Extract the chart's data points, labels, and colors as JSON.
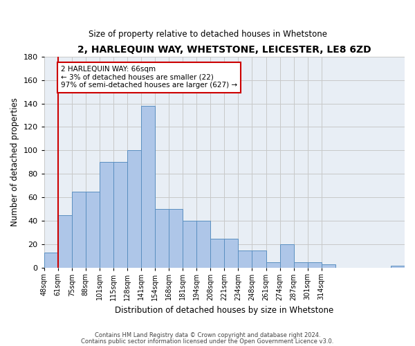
{
  "title": "2, HARLEQUIN WAY, WHETSTONE, LEICESTER, LE8 6ZD",
  "subtitle": "Size of property relative to detached houses in Whetstone",
  "xlabel": "Distribution of detached houses by size in Whetstone",
  "ylabel": "Number of detached properties",
  "bar_heights": [
    13,
    45,
    65,
    65,
    90,
    90,
    100,
    138,
    50,
    50,
    40,
    40,
    25,
    25,
    15,
    15,
    5,
    20,
    5,
    5,
    3,
    0,
    0,
    0,
    0,
    2
  ],
  "xtick_labels": [
    "48sqm",
    "61sqm",
    "75sqm",
    "88sqm",
    "101sqm",
    "115sqm",
    "128sqm",
    "141sqm",
    "154sqm",
    "168sqm",
    "181sqm",
    "194sqm",
    "208sqm",
    "221sqm",
    "234sqm",
    "248sqm",
    "261sqm",
    "274sqm",
    "287sqm",
    "301sqm",
    "314sqm"
  ],
  "bar_color": "#aec6e8",
  "bar_edge_color": "#5a8fc0",
  "bg_color": "#e8eef5",
  "grid_color": "#c8c8c8",
  "vline_color": "#cc0000",
  "annotation_text": "2 HARLEQUIN WAY: 66sqm\n← 3% of detached houses are smaller (22)\n97% of semi-detached houses are larger (627) →",
  "annotation_box_color": "#ffffff",
  "annotation_box_edge": "#cc0000",
  "footer1": "Contains HM Land Registry data © Crown copyright and database right 2024.",
  "footer2": "Contains public sector information licensed under the Open Government Licence v3.0.",
  "ylim": [
    0,
    180
  ],
  "yticks": [
    0,
    20,
    40,
    60,
    80,
    100,
    120,
    140,
    160,
    180
  ]
}
